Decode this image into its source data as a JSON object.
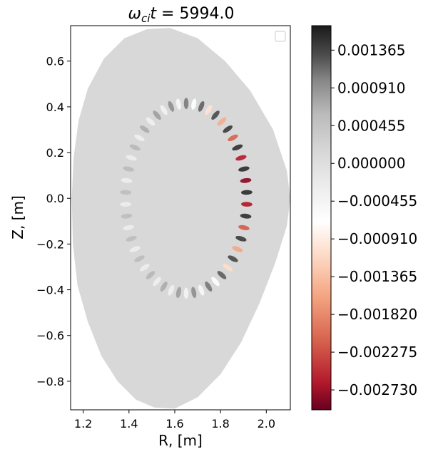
{
  "chart_data": {
    "type": "heatmap",
    "title": "ω_ci t = 5994.0",
    "title_parts": {
      "omega": "ω",
      "sub": "ci",
      "t": "t",
      "eq": " = 5994.0"
    },
    "xlabel": "R, [m]",
    "ylabel": "Z, [m]",
    "xlim": [
      1.145,
      2.105
    ],
    "ylim": [
      -0.925,
      0.755
    ],
    "xticks": [
      1.2,
      1.4,
      1.6,
      1.8,
      2.0
    ],
    "xtick_labels": [
      "1.2",
      "1.4",
      "1.6",
      "1.8",
      "2.0"
    ],
    "yticks": [
      0.6,
      0.4,
      0.2,
      0.0,
      -0.2,
      -0.4,
      -0.6,
      -0.8
    ],
    "ytick_labels": [
      "0.6",
      "0.4",
      "0.2",
      "0.0",
      "−0.2",
      "−0.4",
      "−0.6",
      "−0.8"
    ],
    "legend": {
      "placement": "top-right",
      "entries": []
    },
    "grid": false,
    "colorbar": {
      "vmin": -0.00297,
      "vmax": 0.00166,
      "ticks": [
        0.001365,
        0.00091,
        0.000455,
        0.0,
        -0.000455,
        -0.00091,
        -0.001365,
        -0.00182,
        -0.002275,
        -0.00273
      ],
      "tick_labels": [
        "0.001365",
        "0.000910",
        "0.000455",
        "0.000000",
        "−0.000455",
        "−0.000910",
        "−0.001365",
        "−0.001820",
        "−0.002275",
        "−0.002730"
      ],
      "colormap": "RdGy",
      "stops": [
        {
          "v": -0.00297,
          "color": "#67001f"
        },
        {
          "v": -0.00265,
          "color": "#b2182b"
        },
        {
          "v": -0.00215,
          "color": "#d6604d"
        },
        {
          "v": -0.0016,
          "color": "#f4a582"
        },
        {
          "v": -0.0011,
          "color": "#fddbc7"
        },
        {
          "v": -0.0007,
          "color": "#ffffff"
        },
        {
          "v": -0.0002,
          "color": "#e9e9e9"
        },
        {
          "v": 0.0002,
          "color": "#d4d4d4"
        },
        {
          "v": 0.0006,
          "color": "#bababa"
        },
        {
          "v": 0.001,
          "color": "#878787"
        },
        {
          "v": 0.0013,
          "color": "#4d4d4d"
        },
        {
          "v": 0.00166,
          "color": "#1a1a1a"
        }
      ]
    },
    "plasma": {
      "boundary_R": [
        1.48,
        1.58,
        1.7,
        1.82,
        1.93,
        2.03,
        2.09,
        2.105,
        2.09,
        2.04,
        1.97,
        1.89,
        1.8,
        1.7,
        1.6,
        1.51,
        1.43,
        1.35,
        1.28,
        1.22,
        1.175,
        1.155,
        1.15,
        1.158,
        1.18,
        1.22,
        1.29,
        1.38,
        1.48
      ],
      "boundary_Z": [
        0.74,
        0.745,
        0.7,
        0.6,
        0.47,
        0.3,
        0.12,
        0.0,
        -0.12,
        -0.28,
        -0.46,
        -0.63,
        -0.77,
        -0.87,
        -0.92,
        -0.915,
        -0.88,
        -0.8,
        -0.69,
        -0.54,
        -0.38,
        -0.2,
        0.0,
        0.18,
        0.34,
        0.48,
        0.61,
        0.7,
        0.74
      ],
      "background_value": 0.00012,
      "mode": {
        "center_R": 1.65,
        "center_Z": 0.0,
        "radius_R": 0.265,
        "radius_Z": 0.415,
        "width": 0.045,
        "poloidal_mode_number": 50,
        "peak_angle_deg": 10,
        "amplitude_positive": 0.00152,
        "amplitude_negative": -0.00282
      }
    }
  }
}
